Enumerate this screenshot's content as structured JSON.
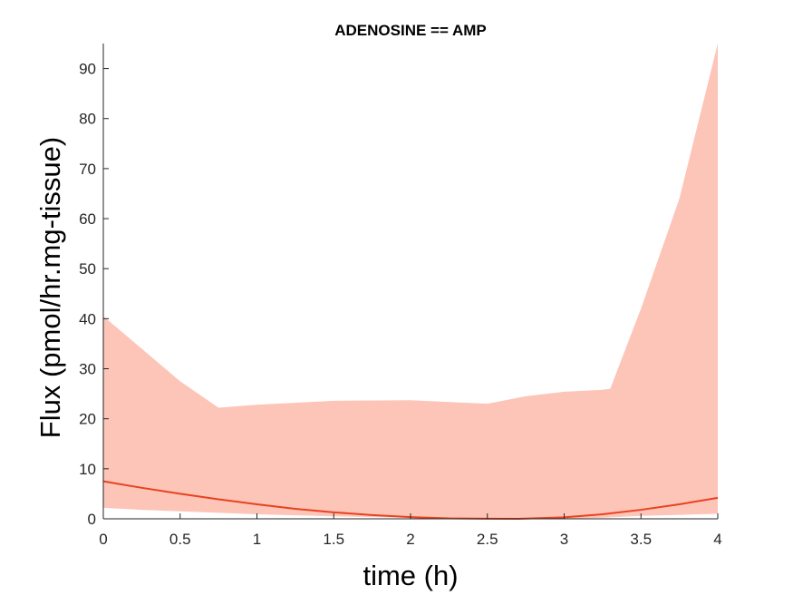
{
  "chart_data": {
    "type": "area",
    "title": "ADENOSINE == AMP",
    "xlabel": "time (h)",
    "ylabel": "Flux (pmol/hr.mg-tissue)",
    "xlim": [
      0,
      4
    ],
    "ylim": [
      0,
      95
    ],
    "xticks": [
      0,
      0.5,
      1,
      1.5,
      2,
      2.5,
      3,
      3.5,
      4
    ],
    "xtick_labels": [
      "0",
      "0.5",
      "1",
      "1.5",
      "2",
      "2.5",
      "3",
      "3.5",
      "4"
    ],
    "yticks": [
      0,
      10,
      20,
      30,
      40,
      50,
      60,
      70,
      80,
      90
    ],
    "ytick_labels": [
      "0",
      "10",
      "20",
      "30",
      "40",
      "50",
      "60",
      "70",
      "80",
      "90"
    ],
    "grid": false,
    "band": {
      "color": "#fdc4b8",
      "x": [
        0,
        0.25,
        0.5,
        0.75,
        1,
        1.5,
        2,
        2.5,
        2.75,
        3,
        3.25,
        3.3,
        3.5,
        3.75,
        4
      ],
      "upper": [
        40.5,
        34,
        27.5,
        22.2,
        22.8,
        23.6,
        23.7,
        23.0,
        24.5,
        25.4,
        25.8,
        26.0,
        42,
        64,
        95
      ],
      "lower": [
        2.2,
        1.8,
        1.5,
        1.2,
        0.9,
        0.5,
        0.2,
        0.05,
        0.0,
        0.0,
        0.2,
        0.3,
        0.6,
        0.8,
        1.0
      ]
    },
    "series": [
      {
        "color": "#e8421f",
        "x": [
          0,
          0.25,
          0.5,
          0.75,
          1,
          1.25,
          1.5,
          1.75,
          2,
          2.25,
          2.5,
          2.7,
          3,
          3.25,
          3.5,
          3.75,
          4
        ],
        "values": [
          7.5,
          6.2,
          5.0,
          3.9,
          2.9,
          2.0,
          1.3,
          0.75,
          0.35,
          0.1,
          0.02,
          0.0,
          0.3,
          0.9,
          1.8,
          2.9,
          4.2
        ]
      }
    ]
  }
}
